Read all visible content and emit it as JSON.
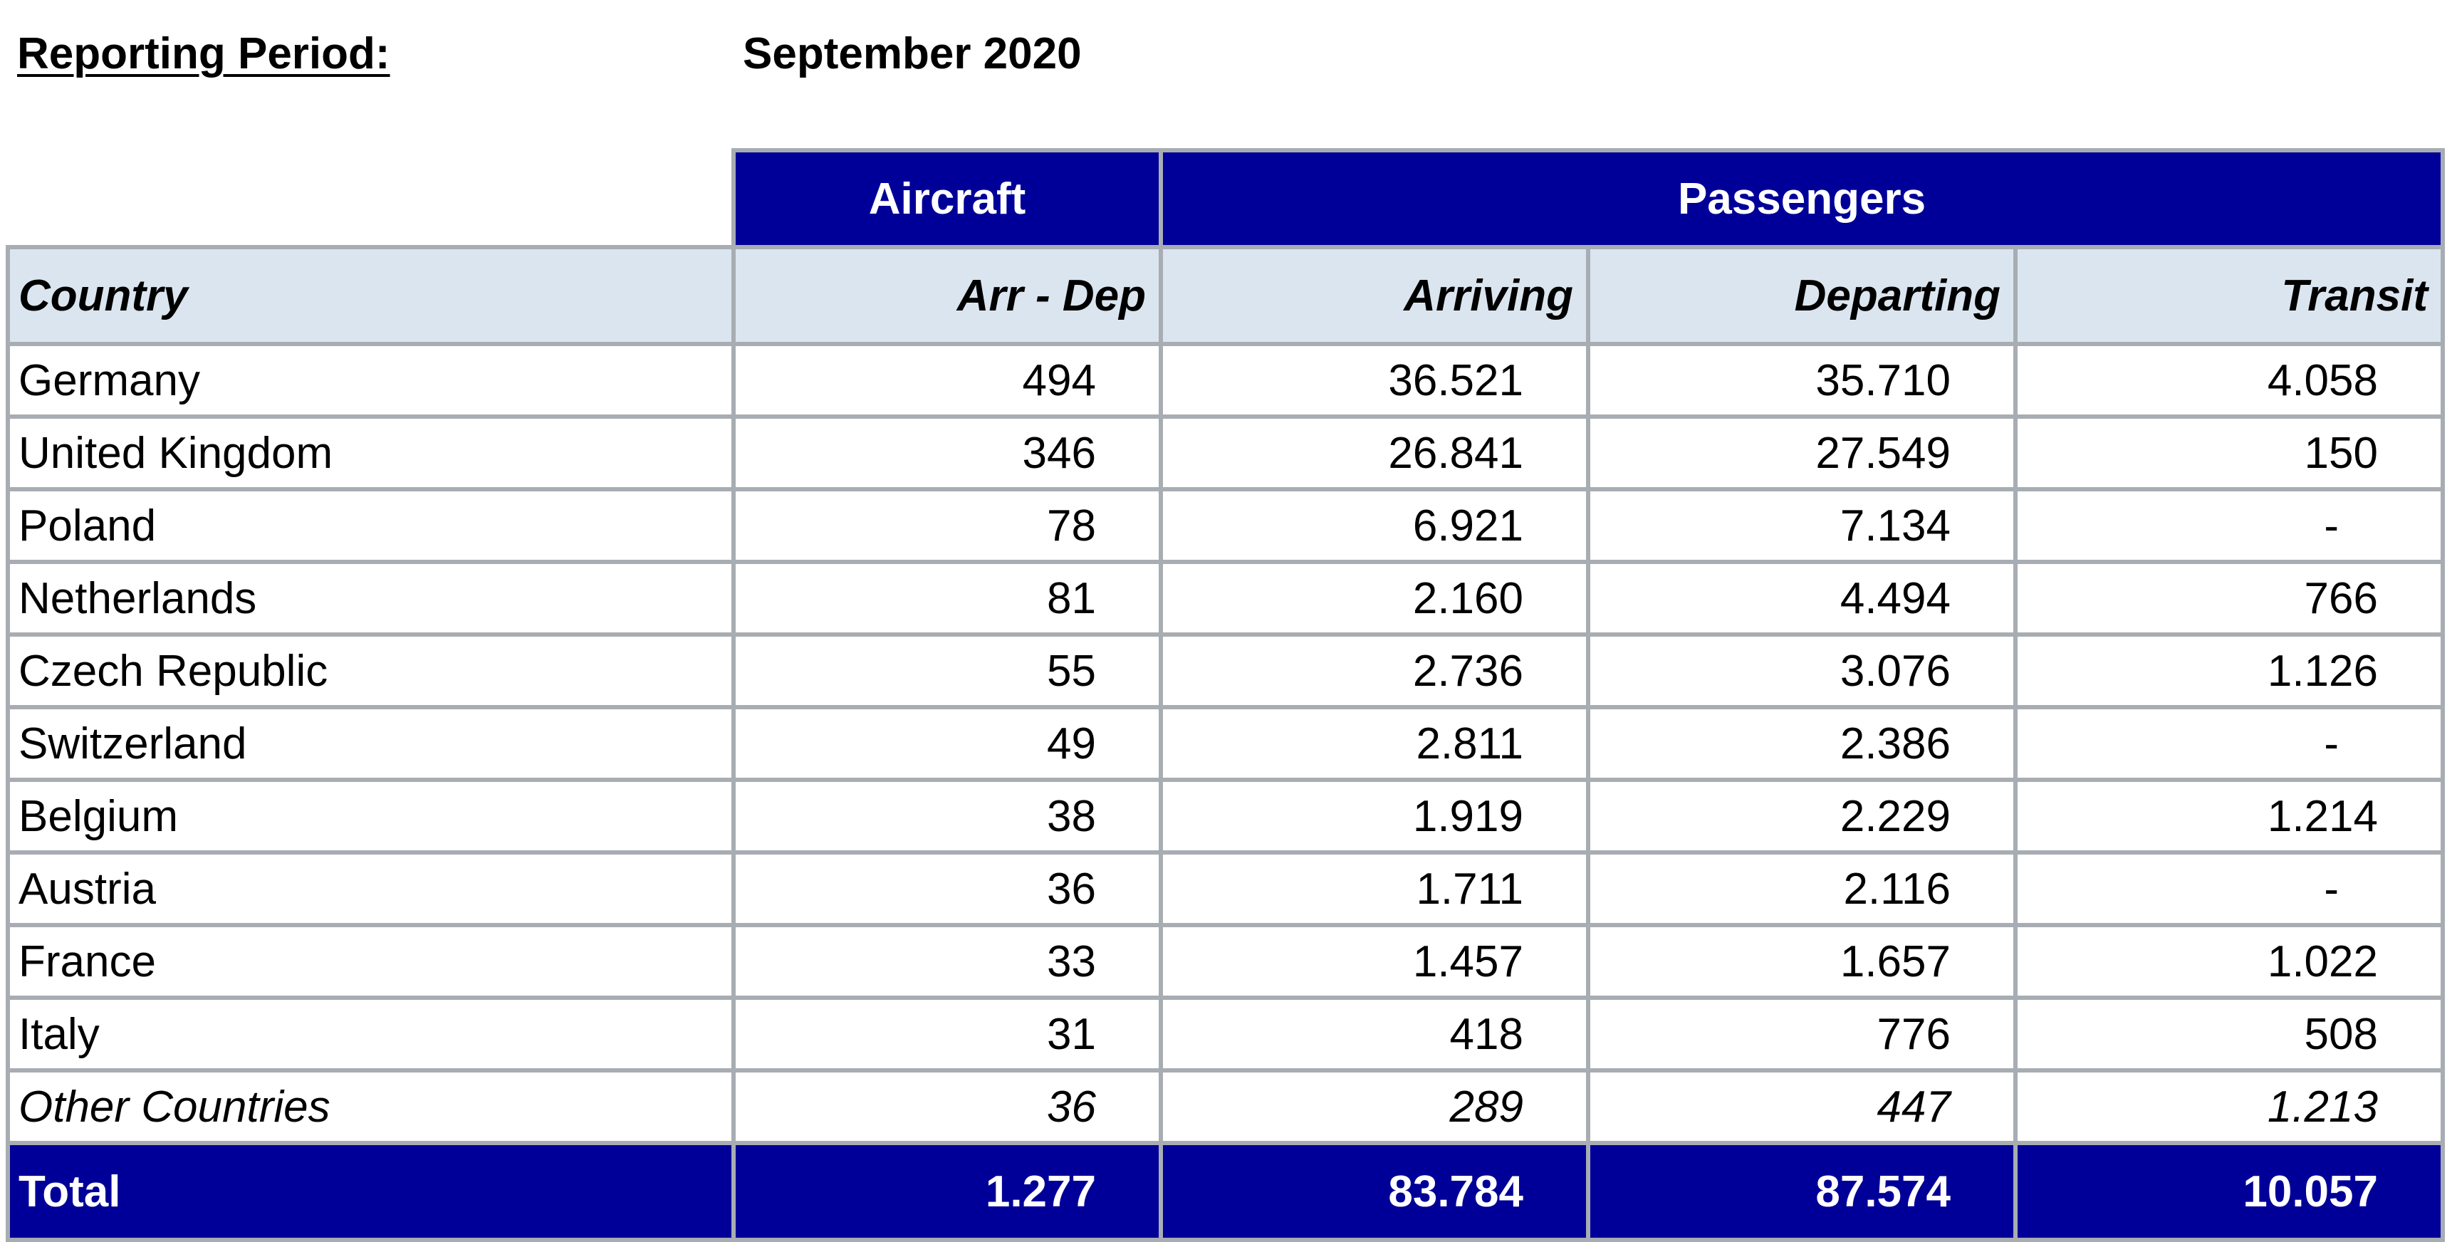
{
  "header": {
    "period_label": "Reporting Period:",
    "period_value": "September 2020"
  },
  "table": {
    "group_headers": {
      "aircraft": "Aircraft",
      "passengers": "Passengers"
    },
    "columns": {
      "country": "Country",
      "arr_dep": "Arr - Dep",
      "arriving": "Arriving",
      "departing": "Departing",
      "transit": "Transit"
    },
    "rows": [
      {
        "country": "Germany",
        "arr_dep": "494",
        "arriving": "36.521",
        "departing": "35.710",
        "transit": "4.058"
      },
      {
        "country": "United Kingdom",
        "arr_dep": "346",
        "arriving": "26.841",
        "departing": "27.549",
        "transit": "150"
      },
      {
        "country": "Poland",
        "arr_dep": "78",
        "arriving": "6.921",
        "departing": "7.134",
        "transit": "-"
      },
      {
        "country": "Netherlands",
        "arr_dep": "81",
        "arriving": "2.160",
        "departing": "4.494",
        "transit": "766"
      },
      {
        "country": "Czech Republic",
        "arr_dep": "55",
        "arriving": "2.736",
        "departing": "3.076",
        "transit": "1.126"
      },
      {
        "country": "Switzerland",
        "arr_dep": "49",
        "arriving": "2.811",
        "departing": "2.386",
        "transit": "-"
      },
      {
        "country": "Belgium",
        "arr_dep": "38",
        "arriving": "1.919",
        "departing": "2.229",
        "transit": "1.214"
      },
      {
        "country": "Austria",
        "arr_dep": "36",
        "arriving": "1.711",
        "departing": "2.116",
        "transit": "-"
      },
      {
        "country": "France",
        "arr_dep": "33",
        "arriving": "1.457",
        "departing": "1.657",
        "transit": "1.022"
      },
      {
        "country": "Italy",
        "arr_dep": "31",
        "arriving": "418",
        "departing": "776",
        "transit": "508"
      },
      {
        "country": "Other Countries",
        "arr_dep": "36",
        "arriving": "289",
        "departing": "447",
        "transit": "1.213"
      }
    ],
    "total": {
      "label": "Total",
      "arr_dep": "1.277",
      "arriving": "83.784",
      "departing": "87.574",
      "transit": "10.057"
    }
  },
  "colors": {
    "header_navy": "#000098",
    "column_header_bg": "#dbe5ef",
    "grid_gray": "#a7adb2"
  }
}
